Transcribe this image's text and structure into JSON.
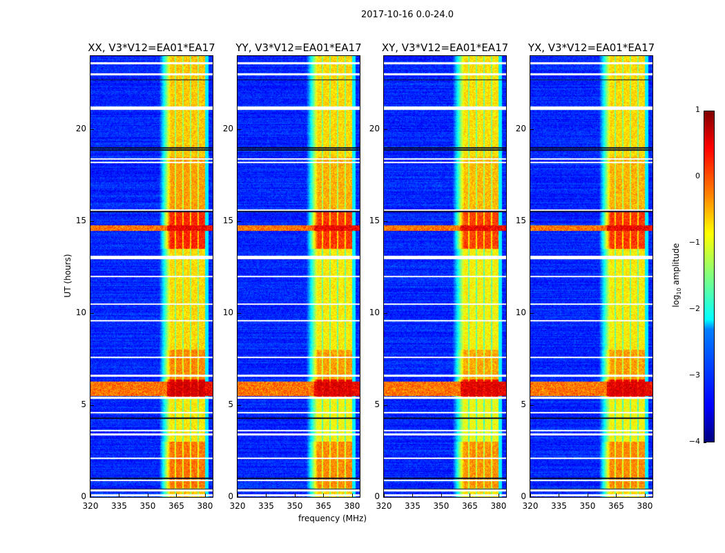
{
  "chart_data": {
    "type": "heatmap",
    "title": "2017-10-16 0.0-24.0",
    "xlabel": "frequency (MHz)",
    "ylabel": "UT (hours)",
    "xlim": [
      320,
      384
    ],
    "ylim": [
      0,
      24
    ],
    "xticks": [
      320,
      335,
      350,
      365,
      380
    ],
    "yticks": [
      0,
      5,
      10,
      15,
      20
    ],
    "panels": [
      {
        "title": "XX, V3*V12=EA01*EA17",
        "band_offset": 0.0
      },
      {
        "title": "YY, V3*V12=EA01*EA17",
        "band_offset": -0.1
      },
      {
        "title": "XY, V3*V12=EA01*EA17",
        "band_offset": -0.15
      },
      {
        "title": "YX, V3*V12=EA01*EA17",
        "band_offset": -0.1
      }
    ],
    "colorbar": {
      "label": "log10 amplitude",
      "label_sub": "10",
      "range": [
        -4,
        1
      ],
      "ticks": [
        1,
        0,
        -1,
        -2,
        -3,
        -4
      ],
      "tick_labels": [
        "1",
        "0",
        "−1",
        "−2",
        "−3",
        "−4"
      ],
      "colormap": "jet"
    },
    "background_level": -3.2,
    "band_MHz": [
      360,
      381
    ],
    "band_subchannel_edges_MHz": [
      364.5,
      368.5,
      372.5,
      376.5
    ],
    "band_level_by_time": [
      {
        "from": 0,
        "to": 0.5,
        "level": -0.6
      },
      {
        "from": 0.5,
        "to": 3.0,
        "level": -0.2
      },
      {
        "from": 3.0,
        "to": 5.4,
        "level": -0.8
      },
      {
        "from": 5.4,
        "to": 6.4,
        "level": 0.5
      },
      {
        "from": 6.4,
        "to": 8.0,
        "level": -0.3
      },
      {
        "from": 8.0,
        "to": 13.5,
        "level": -0.7
      },
      {
        "from": 13.5,
        "to": 15.6,
        "level": 0.2
      },
      {
        "from": 15.6,
        "to": 18.5,
        "level": -0.4
      },
      {
        "from": 18.5,
        "to": 24,
        "level": -0.6
      }
    ],
    "broadband_rfi_hours": [
      [
        5.5,
        6.3
      ],
      [
        14.5,
        14.8
      ]
    ],
    "flagged_hours": [
      0.1,
      0.35,
      0.9,
      2.1,
      3.4,
      3.6,
      4.6,
      5.4,
      6.6,
      7.6,
      9.6,
      10.5,
      12.0,
      13.0,
      13.1,
      15.6,
      18.2,
      18.4,
      21.1,
      21.2,
      23.0,
      23.6
    ],
    "dark_hours": [
      0.4,
      1.0,
      4.3,
      18.9,
      19.0,
      22.7,
      15.55
    ]
  }
}
